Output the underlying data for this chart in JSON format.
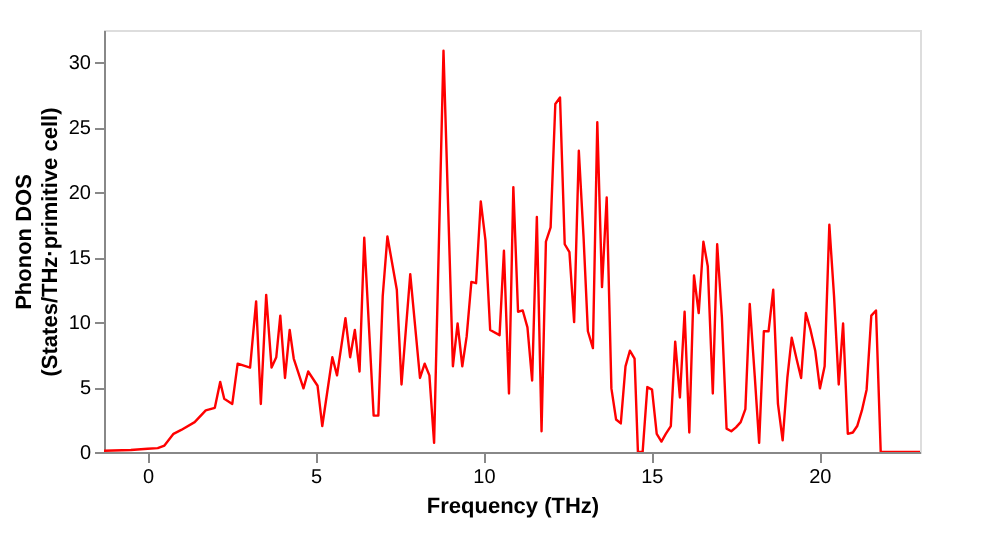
{
  "chart_data": {
    "type": "line",
    "xlabel": "Frequency (THz)",
    "ylabel": "Phonon DOS\n(States/THz·primitive cell)",
    "xlim": [
      -1.3,
      23
    ],
    "ylim": [
      0,
      32.5
    ],
    "xticks": [
      0,
      5,
      10,
      15,
      20
    ],
    "yticks": [
      0,
      5,
      10,
      15,
      20,
      25,
      30
    ],
    "grid": false,
    "legend": false,
    "marker": "none",
    "line_style": "solid",
    "series": [
      {
        "color": "#ff0000",
        "x": [
          -1.3,
          -0.5,
          0,
          0.3,
          0.5,
          0.77,
          1.0,
          1.4,
          1.73,
          2.0,
          2.16,
          2.28,
          2.52,
          2.68,
          3.05,
          3.23,
          3.37,
          3.53,
          3.69,
          3.83,
          3.95,
          4.09,
          4.23,
          4.35,
          4.64,
          4.78,
          5.06,
          5.2,
          5.5,
          5.64,
          5.89,
          6.03,
          6.17,
          6.31,
          6.45,
          6.73,
          6.87,
          7.0,
          7.14,
          7.42,
          7.56,
          7.82,
          8.11,
          8.25,
          8.39,
          8.53,
          8.81,
          9.09,
          9.23,
          9.37,
          9.5,
          9.64,
          9.78,
          9.92,
          10.06,
          10.2,
          10.48,
          10.61,
          10.76,
          10.89,
          11.03,
          11.17,
          11.31,
          11.45,
          11.59,
          11.73,
          11.86,
          12.0,
          12.14,
          12.28,
          12.42,
          12.56,
          12.7,
          12.84,
          12.98,
          13.11,
          13.26,
          13.39,
          13.53,
          13.67,
          13.81,
          13.95,
          14.09,
          14.23,
          14.36,
          14.5,
          14.6,
          14.74,
          14.88,
          15.02,
          15.16,
          15.3,
          15.43,
          15.58,
          15.71,
          15.85,
          15.99,
          16.13,
          16.27,
          16.41,
          16.55,
          16.68,
          16.83,
          16.96,
          17.1,
          17.24,
          17.38,
          17.52,
          17.66,
          17.8,
          17.93,
          18.08,
          18.21,
          18.35,
          18.49,
          18.63,
          18.77,
          18.91,
          19.05,
          19.18,
          19.33,
          19.46,
          19.6,
          19.74,
          19.88,
          20.02,
          20.16,
          20.3,
          20.44,
          20.58,
          20.71,
          20.85,
          21.0,
          21.13,
          21.27,
          21.41,
          21.55,
          21.69,
          21.83,
          23
        ],
        "values": [
          0.1,
          0.15,
          0.25,
          0.3,
          0.5,
          1.4,
          1.7,
          2.3,
          3.2,
          3.4,
          5.4,
          4.1,
          3.7,
          6.8,
          6.5,
          11.6,
          3.7,
          12.1,
          6.5,
          7.3,
          10.5,
          5.7,
          9.4,
          7.2,
          4.9,
          6.2,
          5.1,
          2.0,
          7.3,
          5.9,
          10.3,
          7.3,
          9.4,
          6.2,
          16.5,
          2.8,
          2.8,
          12.0,
          16.6,
          12.5,
          5.2,
          13.7,
          5.7,
          6.8,
          5.9,
          0.7,
          30.9,
          6.6,
          9.9,
          6.6,
          8.9,
          13.1,
          13.0,
          19.3,
          16.3,
          9.4,
          9.0,
          15.5,
          4.5,
          20.4,
          10.8,
          10.9,
          9.6,
          5.5,
          18.1,
          1.6,
          16.2,
          17.3,
          26.8,
          27.3,
          16.0,
          15.4,
          10.0,
          23.2,
          16.6,
          9.3,
          8.0,
          25.4,
          12.7,
          19.6,
          4.9,
          2.5,
          2.2,
          6.6,
          7.8,
          7.2,
          0.0,
          0.0,
          5.0,
          4.8,
          1.4,
          0.8,
          1.4,
          2.0,
          8.5,
          4.2,
          10.8,
          1.5,
          13.6,
          10.7,
          16.2,
          14.3,
          4.5,
          16.0,
          10.4,
          1.8,
          1.6,
          1.9,
          2.3,
          3.3,
          11.4,
          5.8,
          0.7,
          9.3,
          9.3,
          12.5,
          3.7,
          0.9,
          5.7,
          8.8,
          7.1,
          5.7,
          10.7,
          9.4,
          7.8,
          4.9,
          6.6,
          17.5,
          12.0,
          5.2,
          9.9,
          1.4,
          1.5,
          2.0,
          3.2,
          4.8,
          10.5,
          10.9,
          0.0,
          0.0
        ]
      }
    ]
  }
}
